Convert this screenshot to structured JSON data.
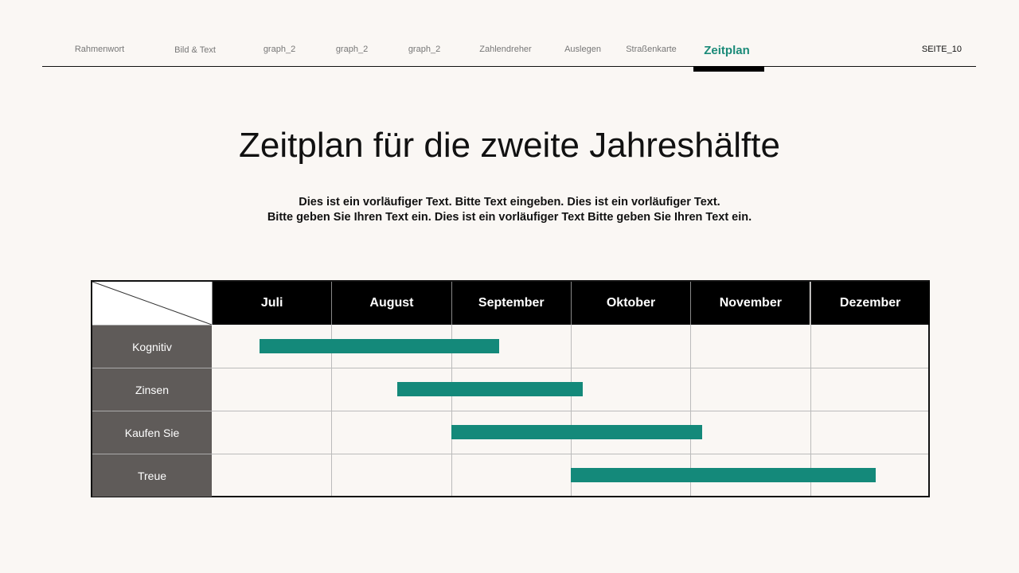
{
  "nav": {
    "items": [
      "Rahmenwort",
      "Bild & Text",
      "graph_2",
      "graph_2",
      "graph_2",
      "Zahlendreher",
      "Auslegen",
      "Straßenkarte",
      "Zeitplan"
    ],
    "active_index": 8,
    "page": "SEITE_10"
  },
  "title": "Zeitplan für die zweite Jahreshälfte",
  "subtitle": [
    "Dies ist ein vorläufiger Text. Bitte Text eingeben. Dies ist ein vorläufiger Text.",
    "Bitte geben Sie Ihren Text ein. Dies ist ein vorläufiger Text Bitte geben Sie Ihren Text ein."
  ],
  "colors": {
    "accent": "#1a8a78",
    "bar": "#14897a",
    "header": "#000000",
    "row_label": "#5f5b59"
  },
  "chart_data": {
    "type": "gantt",
    "categories": [
      "Juli",
      "August",
      "September",
      "Oktober",
      "November",
      "Dezember"
    ],
    "tasks": [
      {
        "label": "Kognitiv",
        "start": 0.4,
        "end": 2.4
      },
      {
        "label": "Zinsen",
        "start": 1.55,
        "end": 3.1
      },
      {
        "label": "Kaufen Sie",
        "start": 2.0,
        "end": 4.1
      },
      {
        "label": "Treue",
        "start": 3.0,
        "end": 5.55
      }
    ],
    "x_unit": "months from start of Juli"
  }
}
